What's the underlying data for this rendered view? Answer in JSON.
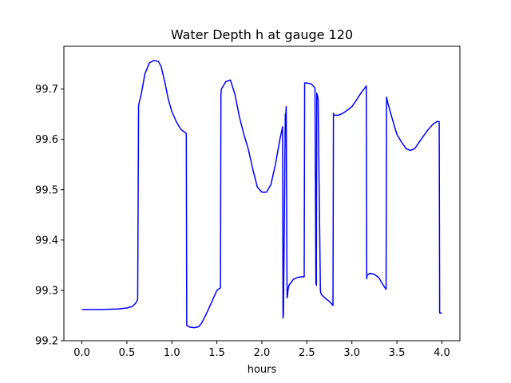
{
  "chart_data": {
    "type": "line",
    "title": "Water Depth h at gauge 120",
    "xlabel": "hours",
    "ylabel": "",
    "xlim": [
      -0.2,
      4.2
    ],
    "ylim": [
      99.2,
      99.785
    ],
    "xticks": [
      0.0,
      0.5,
      1.0,
      1.5,
      2.0,
      2.5,
      3.0,
      3.5,
      4.0
    ],
    "xtick_labels": [
      "0.0",
      "0.5",
      "1.0",
      "1.5",
      "2.0",
      "2.5",
      "3.0",
      "3.5",
      "4.0"
    ],
    "yticks": [
      99.2,
      99.3,
      99.4,
      99.5,
      99.6,
      99.7
    ],
    "ytick_labels": [
      "99.2",
      "99.3",
      "99.4",
      "99.5",
      "99.6",
      "99.7"
    ],
    "grid": false,
    "line_color": "#0000ff",
    "series": [
      {
        "x": [
          0.0,
          0.2,
          0.4,
          0.5,
          0.56,
          0.6,
          0.62,
          0.63,
          0.66,
          0.7,
          0.75,
          0.8,
          0.85,
          0.88,
          0.92,
          0.96,
          1.0,
          1.05,
          1.1,
          1.15,
          1.16,
          1.165,
          1.2,
          1.25,
          1.3,
          1.33,
          1.36,
          1.4,
          1.45,
          1.5,
          1.54,
          1.545,
          1.55,
          1.6,
          1.65,
          1.7,
          1.75,
          1.8,
          1.85,
          1.9,
          1.95,
          2.0,
          2.05,
          2.1,
          2.15,
          2.2,
          2.23,
          2.235,
          2.24,
          2.26,
          2.265,
          2.27,
          2.28,
          2.285,
          2.29,
          2.3,
          2.35,
          2.4,
          2.45,
          2.47,
          2.475,
          2.5,
          2.55,
          2.59,
          2.6,
          2.605,
          2.61,
          2.62,
          2.625,
          2.65,
          2.655,
          2.66,
          2.7,
          2.75,
          2.79,
          2.795,
          2.8,
          2.85,
          2.9,
          2.95,
          3.0,
          3.05,
          3.1,
          3.16,
          3.165,
          3.17,
          3.2,
          3.25,
          3.3,
          3.35,
          3.38,
          3.385,
          3.4,
          3.45,
          3.5,
          3.55,
          3.6,
          3.65,
          3.7,
          3.75,
          3.8,
          3.85,
          3.9,
          3.95,
          3.97,
          3.975,
          4.0
        ],
        "values": [
          99.262,
          99.262,
          99.263,
          99.265,
          99.268,
          99.275,
          99.282,
          99.668,
          99.69,
          99.73,
          99.752,
          99.757,
          99.755,
          99.745,
          99.715,
          99.68,
          99.655,
          99.635,
          99.62,
          99.613,
          99.612,
          99.23,
          99.227,
          99.226,
          99.228,
          99.235,
          99.245,
          99.26,
          99.28,
          99.3,
          99.305,
          99.69,
          99.7,
          99.715,
          99.718,
          99.69,
          99.645,
          99.61,
          99.58,
          99.54,
          99.505,
          99.495,
          99.495,
          99.51,
          99.55,
          99.6,
          99.625,
          99.245,
          99.255,
          99.65,
          99.645,
          99.665,
          99.285,
          99.29,
          99.3,
          99.31,
          99.322,
          99.326,
          99.327,
          99.327,
          99.712,
          99.712,
          99.71,
          99.702,
          99.315,
          99.31,
          99.692,
          99.685,
          99.68,
          99.3,
          99.295,
          99.292,
          99.285,
          99.278,
          99.27,
          99.652,
          99.648,
          99.648,
          99.652,
          99.658,
          99.665,
          99.678,
          99.692,
          99.706,
          99.323,
          99.33,
          99.334,
          99.332,
          99.325,
          99.31,
          99.302,
          99.684,
          99.672,
          99.64,
          99.61,
          99.595,
          99.582,
          99.578,
          99.582,
          99.595,
          99.608,
          99.62,
          99.63,
          99.636,
          99.635,
          99.255,
          99.255
        ]
      }
    ]
  }
}
